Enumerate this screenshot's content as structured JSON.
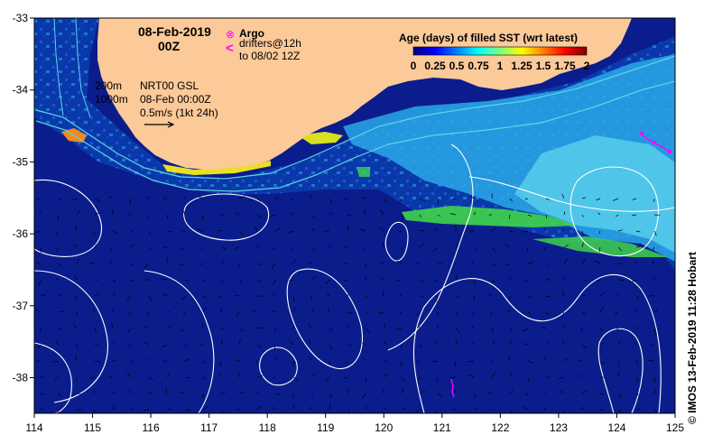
{
  "map": {
    "date_title": "08-Feb-2019",
    "time_title": "00Z",
    "legend": {
      "argo_label": "Argo",
      "argo_symbol": "⊗",
      "drifters_line1": "drifters@12h",
      "drifters_line2": "to 08/02 12Z",
      "drifter_symbol": "<",
      "marker_color": "#ff00ff"
    },
    "contour_labels": {
      "depth_200": "200m",
      "depth_1000": "1000m"
    },
    "product": {
      "line1": "NRT00 GSL",
      "line2": "08-Feb 00:00Z",
      "line3": "0.5m/s (1kt 24h)"
    },
    "credit": "© IMOS 13-Feb-2019 11:28 Hobart",
    "x_ticks": [
      "114",
      "115",
      "116",
      "117",
      "118",
      "119",
      "120",
      "121",
      "122",
      "123",
      "124",
      "125"
    ],
    "y_ticks": [
      "-33",
      "-34",
      "-35",
      "-36",
      "-37",
      "-38"
    ],
    "colors": {
      "land": "#fcc999",
      "ocean_deep": "#0b1d8c",
      "ocean_mid": "#0a3db0",
      "contour": "#ffffff",
      "isobath": "#5fd4e6"
    }
  },
  "colorbar": {
    "title": "Age (days) of filled SST (wrt latest)",
    "tick_labels": [
      "0",
      "0.25",
      "0.5",
      "0.75",
      "1",
      "1.25",
      "1.5",
      "1.75",
      "2"
    ],
    "min": 0,
    "max": 2,
    "colors": [
      "#00007f",
      "#0000ff",
      "#007fff",
      "#00ffff",
      "#7fff7f",
      "#ffff00",
      "#ff7f00",
      "#ff0000",
      "#7f0000"
    ]
  }
}
